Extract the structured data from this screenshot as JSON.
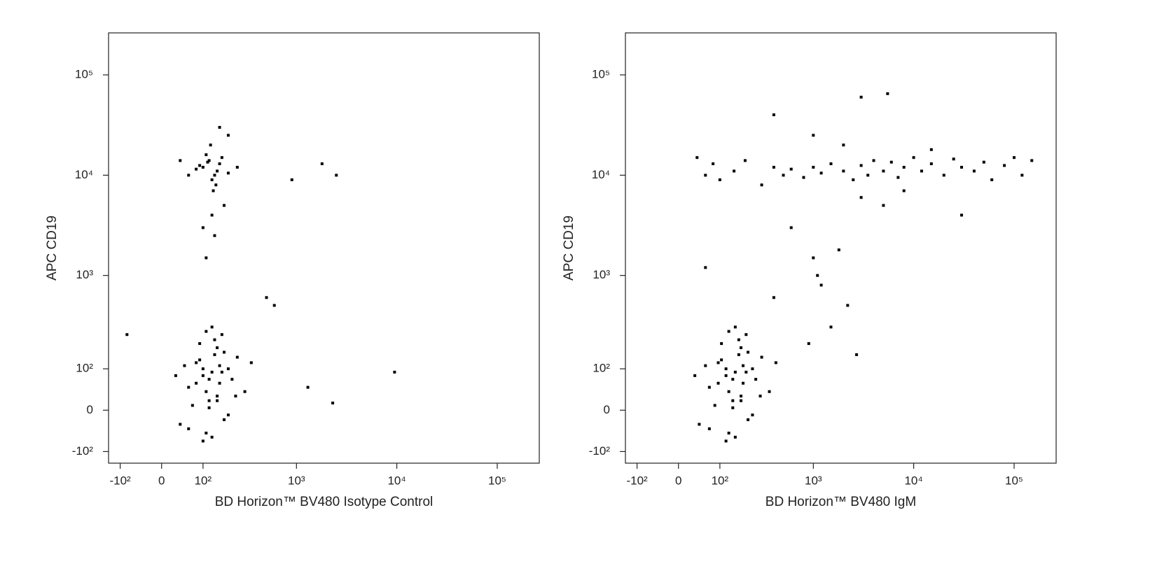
{
  "chart_data": [
    {
      "type": "scatter",
      "xlabel": "BD Horizon™ BV480 Isotype Control",
      "ylabel": "APC CD19",
      "xscale": "asinh",
      "yscale": "asinh",
      "color": "#000000",
      "xlim": [
        -140,
        262144
      ],
      "ylim": [
        -140,
        262144
      ],
      "xticks": [
        {
          "value": -100,
          "label": "-10²"
        },
        0,
        {
          "value": 100,
          "label": "10²"
        },
        {
          "value": 1000,
          "label": "10³"
        },
        {
          "value": 10000,
          "label": "10⁴"
        },
        {
          "value": 100000,
          "label": "10⁵"
        }
      ],
      "yticks": [
        {
          "value": -100,
          "label": "-10²"
        },
        0,
        {
          "value": 100,
          "label": "10²"
        },
        {
          "value": 1000,
          "label": "10³"
        },
        {
          "value": 10000,
          "label": "10⁴"
        },
        {
          "value": 100000,
          "label": "10⁵"
        }
      ],
      "x": [
        60,
        80,
        100,
        120,
        140,
        160,
        180,
        200,
        90,
        110,
        130,
        150,
        170,
        70,
        50,
        40,
        220,
        250,
        300,
        130,
        100,
        150,
        120,
        80,
        200,
        160,
        110,
        140,
        90,
        60,
        180,
        120,
        100,
        130,
        170,
        150,
        110,
        240,
        30,
        350,
        100,
        120,
        140,
        160,
        130,
        110,
        150,
        90,
        170,
        200,
        80,
        125,
        145,
        115,
        135,
        60,
        250,
        180,
        100,
        140,
        130,
        110,
        40,
        200,
        160,
        900,
        1800,
        2500,
        9500,
        1300,
        2300,
        500,
        600,
        -80
      ],
      "y": [
        50,
        120,
        80,
        20,
        150,
        60,
        -20,
        100,
        200,
        -50,
        90,
        30,
        250,
        10,
        110,
        -30,
        70,
        140,
        40,
        300,
        -70,
        180,
        5,
        60,
        -10,
        110,
        40,
        220,
        130,
        -40,
        160,
        70,
        100,
        -60,
        90,
        20,
        270,
        30,
        80,
        120,
        12000,
        14000,
        10000,
        13000,
        9000,
        16000,
        11000,
        12500,
        15000,
        10500,
        11500,
        20000,
        8000,
        13500,
        7000,
        10000,
        12000,
        5000,
        3000,
        2500,
        4000,
        1500,
        14000,
        25000,
        30000,
        9000,
        13000,
        10000,
        90,
        50,
        15,
        600,
        500,
        250
      ]
    },
    {
      "type": "scatter",
      "xlabel": "BD Horizon™ BV480 IgM",
      "ylabel": "APC CD19",
      "xscale": "asinh",
      "yscale": "asinh",
      "color": "#000000",
      "xlim": [
        -140,
        262144
      ],
      "ylim": [
        -140,
        262144
      ],
      "xticks": [
        {
          "value": -100,
          "label": "-10²"
        },
        0,
        {
          "value": 100,
          "label": "10²"
        },
        {
          "value": 1000,
          "label": "10³"
        },
        {
          "value": 10000,
          "label": "10⁴"
        },
        {
          "value": 100000,
          "label": "10⁵"
        }
      ],
      "yticks": [
        {
          "value": -100,
          "label": "-10²"
        },
        0,
        {
          "value": 100,
          "label": "10²"
        },
        {
          "value": 1000,
          "label": "10³"
        },
        {
          "value": 10000,
          "label": "10⁴"
        },
        {
          "value": 100000,
          "label": "10⁵"
        }
      ],
      "x": [
        70,
        95,
        120,
        145,
        170,
        190,
        215,
        240,
        105,
        130,
        155,
        180,
        205,
        85,
        60,
        45,
        260,
        300,
        360,
        155,
        120,
        180,
        145,
        95,
        240,
        190,
        130,
        170,
        105,
        70,
        215,
        145,
        120,
        155,
        205,
        180,
        130,
        290,
        35,
        420,
        40,
        60,
        80,
        100,
        150,
        200,
        300,
        400,
        500,
        600,
        800,
        1000,
        1200,
        1500,
        2000,
        2500,
        3000,
        3500,
        4000,
        5000,
        6000,
        7000,
        8000,
        10000,
        12000,
        15000,
        20000,
        25000,
        30000,
        40000,
        50000,
        60000,
        80000,
        100000,
        120000,
        150000,
        2000,
        3000,
        5000,
        8000,
        15000,
        30000,
        600,
        1000,
        400,
        1000,
        1100,
        1200,
        1500,
        2200,
        2700,
        5500,
        1800,
        3000,
        400,
        900,
        60
      ],
      "y": [
        50,
        120,
        80,
        20,
        150,
        60,
        -20,
        100,
        200,
        -50,
        90,
        30,
        250,
        10,
        110,
        -30,
        70,
        140,
        40,
        300,
        -70,
        180,
        5,
        60,
        -10,
        110,
        40,
        220,
        130,
        -40,
        160,
        70,
        100,
        -60,
        90,
        20,
        270,
        30,
        80,
        120,
        15000,
        10000,
        13000,
        9000,
        11000,
        14000,
        8000,
        12000,
        10000,
        11500,
        9500,
        12000,
        10500,
        13000,
        11000,
        9000,
        12500,
        10000,
        14000,
        11000,
        13500,
        9500,
        12000,
        15000,
        11000,
        13000,
        10000,
        14500,
        12000,
        11000,
        13500,
        9000,
        12500,
        15000,
        10000,
        14000,
        20000,
        6000,
        5000,
        7000,
        18000,
        4000,
        3000,
        25000,
        40000,
        1500,
        1000,
        800,
        300,
        500,
        150,
        65000,
        1800,
        60000,
        600,
        200,
        1200
      ]
    }
  ]
}
